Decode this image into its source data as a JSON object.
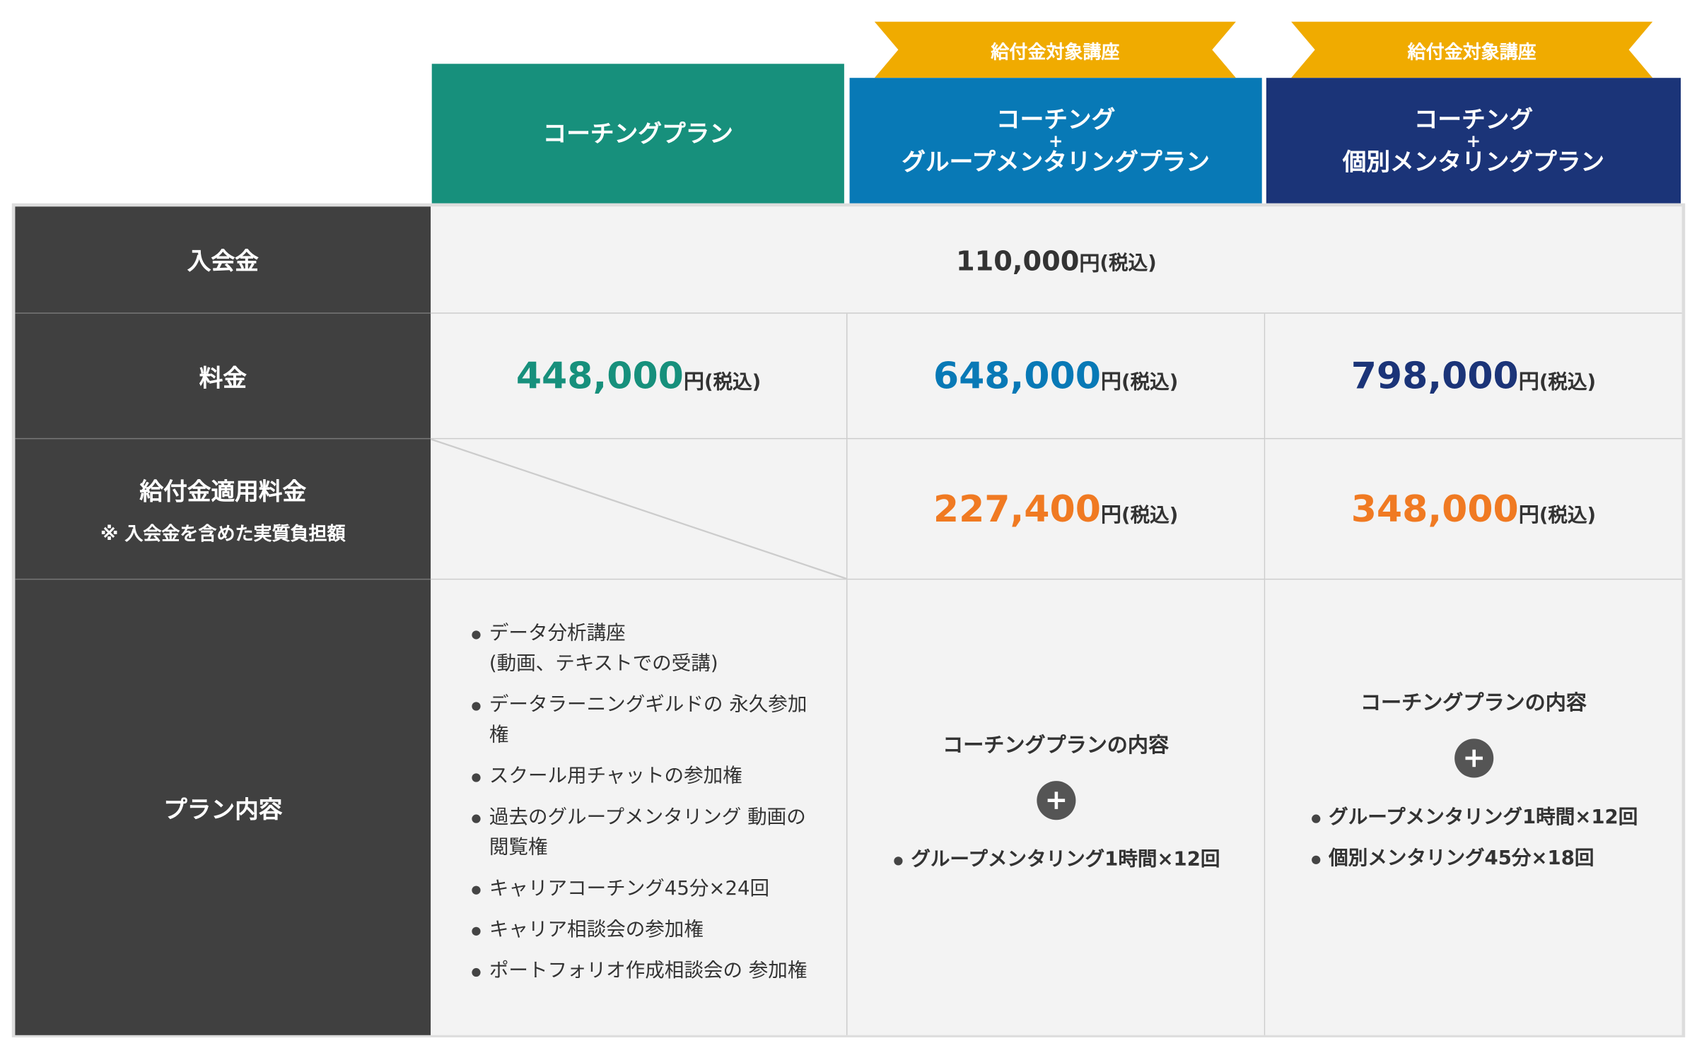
{
  "header": {
    "badges": [
      "給付金対象講座",
      "給付金対象講座"
    ],
    "plans": [
      {
        "lines": [
          "コーチングプラン"
        ]
      },
      {
        "lines": [
          "コーチング",
          "+",
          "グループメンタリングプラン"
        ]
      },
      {
        "lines": [
          "コーチング",
          "+",
          "個別メンタリングプラン"
        ]
      }
    ]
  },
  "rows": {
    "enrollment": {
      "label": "入会金",
      "price": "110,000",
      "unit": "円",
      "tax": "(税込)"
    },
    "fee": {
      "label": "料金",
      "prices": [
        {
          "price": "448,000",
          "unit": "円",
          "tax": "(税込)"
        },
        {
          "price": "648,000",
          "unit": "円",
          "tax": "(税込)"
        },
        {
          "price": "798,000",
          "unit": "円",
          "tax": "(税込)"
        }
      ]
    },
    "subsidy": {
      "label": "給付金適用料金",
      "note": "※ 入会金を含めた実質負担額",
      "prices": [
        {
          "price": "227,400",
          "unit": "円",
          "tax": "(税込)"
        },
        {
          "price": "348,000",
          "unit": "円",
          "tax": "(税込)"
        }
      ]
    },
    "content": {
      "label": "プラン内容",
      "plan1": [
        "データ分析講座\n(動画、テキストでの受講)",
        "データラーニングギルドの 永久参加権",
        "スクール用チャットの参加権",
        "過去のグループメンタリング 動画の閲覧権",
        "キャリアコーチング45分×24回",
        "キャリア相談会の参加権",
        "ポートフォリオ作成相談会の 参加権"
      ],
      "plan2": {
        "heading": "コーチングプランの内容",
        "items": [
          "グループメンタリング1時間×12回"
        ]
      },
      "plan3": {
        "heading": "コーチングプランの内容",
        "items": [
          "グループメンタリング1時間×12回",
          "個別メンタリング45分×18回"
        ]
      }
    }
  }
}
